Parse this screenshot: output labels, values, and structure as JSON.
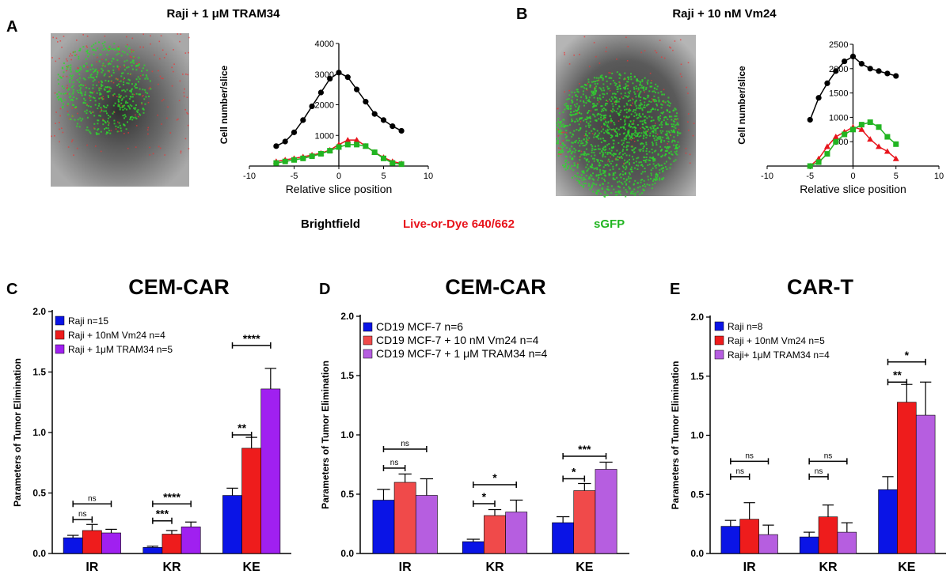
{
  "panels": {
    "A": {
      "letter": "A",
      "title": "Raji + 1 μM TRAM34"
    },
    "B": {
      "letter": "B",
      "title": "Raji + 10 nM Vm24"
    },
    "C": {
      "letter": "C",
      "title": "CEM-CAR"
    },
    "D": {
      "letter": "D",
      "title": "CEM-CAR"
    },
    "E": {
      "letter": "E",
      "title": "CAR-T"
    }
  },
  "channel_legend": [
    {
      "label": "Brightfield",
      "color": "#000000"
    },
    {
      "label": "Live-or-Dye 640/662",
      "color": "#e8141c"
    },
    {
      "label": "sGFP",
      "color": "#22b522"
    }
  ],
  "colors": {
    "black": "#000000",
    "red": "#e8141c",
    "green": "#22b522",
    "blue": "#0a14e6",
    "bar_red": "#ee1c1c",
    "bar_red_light": "#f04a4a",
    "purple": "#a020f0",
    "purple_light": "#b65ee0"
  },
  "chart_data": [
    {
      "id": "A",
      "type": "line",
      "xlabel": "Relative slice position",
      "ylabel": "Cell number/slice",
      "xlim": [
        -10,
        10
      ],
      "ylim": [
        0,
        4000
      ],
      "xticks": [
        "-10",
        "-5",
        "0",
        "5",
        "10"
      ],
      "yticks": [
        "1000",
        "2000",
        "3000",
        "4000"
      ],
      "series": [
        {
          "color": "black",
          "x": [
            -7,
            -6,
            -5,
            -4,
            -3,
            -2,
            -1,
            0,
            1,
            2,
            3,
            4,
            5,
            6,
            7
          ],
          "y": [
            650,
            800,
            1100,
            1500,
            1950,
            2400,
            2850,
            3050,
            2900,
            2500,
            2100,
            1700,
            1500,
            1300,
            1150
          ]
        },
        {
          "color": "red",
          "x": [
            -7,
            -6,
            -5,
            -4,
            -3,
            -2,
            -1,
            0,
            1,
            2,
            3,
            4,
            5,
            6,
            7
          ],
          "y": [
            150,
            200,
            250,
            300,
            360,
            420,
            520,
            700,
            850,
            850,
            650,
            450,
            280,
            150,
            80
          ]
        },
        {
          "color": "green",
          "x": [
            -7,
            -6,
            -5,
            -4,
            -3,
            -2,
            -1,
            0,
            1,
            2,
            3,
            4,
            5,
            6,
            7
          ],
          "y": [
            100,
            150,
            200,
            250,
            320,
            400,
            500,
            620,
            700,
            700,
            650,
            450,
            250,
            100,
            60
          ]
        }
      ]
    },
    {
      "id": "B",
      "type": "line",
      "xlabel": "Relative slice position",
      "ylabel": "Cell number/slice",
      "xlim": [
        -10,
        10
      ],
      "ylim": [
        0,
        2500
      ],
      "xticks": [
        "-10",
        "-5",
        "0",
        "5",
        "10"
      ],
      "yticks": [
        "500",
        "1000",
        "1500",
        "2000",
        "2500"
      ],
      "series": [
        {
          "color": "black",
          "x": [
            -5,
            -4,
            -3,
            -2,
            -1,
            0,
            1,
            2,
            3,
            4,
            5
          ],
          "y": [
            950,
            1400,
            1700,
            1950,
            2150,
            2250,
            2100,
            2000,
            1950,
            1900,
            1850
          ]
        },
        {
          "color": "red",
          "x": [
            -5,
            -4,
            -3,
            -2,
            -1,
            0,
            1,
            2,
            3,
            4,
            5
          ],
          "y": [
            0,
            150,
            400,
            600,
            700,
            800,
            750,
            550,
            400,
            300,
            150
          ]
        },
        {
          "color": "green",
          "x": [
            -5,
            -4,
            -3,
            -2,
            -1,
            0,
            1,
            2,
            3,
            4,
            5
          ],
          "y": [
            0,
            80,
            250,
            500,
            650,
            750,
            850,
            900,
            800,
            600,
            450
          ]
        }
      ]
    },
    {
      "id": "C",
      "type": "bar",
      "ylabel": "Parameters of Tumor Elimination",
      "categories": [
        "IR",
        "KR",
        "KE"
      ],
      "ylim": [
        0,
        2.0
      ],
      "yticks": [
        "0.0",
        "0.5",
        "1.0",
        "1.5",
        "2.0"
      ],
      "series": [
        {
          "name": "Raji  n=15",
          "color": "blue",
          "values": [
            0.13,
            0.05,
            0.48
          ],
          "errors": [
            0.02,
            0.01,
            0.06
          ]
        },
        {
          "name": "Raji + 10nM Vm24  n=4",
          "color": "bar_red",
          "values": [
            0.19,
            0.16,
            0.87
          ],
          "errors": [
            0.05,
            0.03,
            0.09
          ]
        },
        {
          "name": "Raji + 1μM TRAM34 n=5",
          "color": "purple",
          "values": [
            0.17,
            0.22,
            1.36
          ],
          "errors": [
            0.03,
            0.04,
            0.17
          ]
        }
      ],
      "significance": [
        {
          "category": "IR",
          "from": 0,
          "to": 1,
          "label": "ns",
          "y": 0.28
        },
        {
          "category": "IR",
          "from": 0,
          "to": 2,
          "label": "ns",
          "y": 0.41
        },
        {
          "category": "KR",
          "from": 0,
          "to": 1,
          "label": "***",
          "y": 0.27
        },
        {
          "category": "KR",
          "from": 0,
          "to": 2,
          "label": "****",
          "y": 0.41
        },
        {
          "category": "KE",
          "from": 0,
          "to": 1,
          "label": "**",
          "y": 0.98
        },
        {
          "category": "KE",
          "from": 0,
          "to": 2,
          "label": "****",
          "y": 1.72
        }
      ]
    },
    {
      "id": "D",
      "type": "bar",
      "ylabel": "Parameters of Tumor Elimination",
      "categories": [
        "IR",
        "KR",
        "KE"
      ],
      "ylim": [
        0,
        2.0
      ],
      "yticks": [
        "0.0",
        "0.5",
        "1.0",
        "1.5",
        "2.0"
      ],
      "series": [
        {
          "name": "CD19 MCF-7 n=6",
          "color": "blue",
          "values": [
            0.45,
            0.1,
            0.26
          ],
          "errors": [
            0.09,
            0.02,
            0.05
          ]
        },
        {
          "name": "CD19 MCF-7 + 10 nM Vm24  n=4",
          "color": "bar_red_light",
          "values": [
            0.6,
            0.32,
            0.53
          ],
          "errors": [
            0.07,
            0.05,
            0.06
          ]
        },
        {
          "name": "CD19 MCF-7 + 1 μM TRAM34  n=4",
          "color": "purple_light",
          "values": [
            0.49,
            0.35,
            0.71
          ],
          "errors": [
            0.14,
            0.1,
            0.06
          ]
        }
      ],
      "significance": [
        {
          "category": "IR",
          "from": 0,
          "to": 1,
          "label": "ns",
          "y": 0.72
        },
        {
          "category": "IR",
          "from": 0,
          "to": 2,
          "label": "ns",
          "y": 0.88
        },
        {
          "category": "KR",
          "from": 0,
          "to": 1,
          "label": "*",
          "y": 0.42
        },
        {
          "category": "KR",
          "from": 0,
          "to": 2,
          "label": "*",
          "y": 0.58
        },
        {
          "category": "KE",
          "from": 0,
          "to": 1,
          "label": "*",
          "y": 0.63
        },
        {
          "category": "KE",
          "from": 0,
          "to": 2,
          "label": "***",
          "y": 0.82
        }
      ]
    },
    {
      "id": "E",
      "type": "bar",
      "ylabel": "Parameters of Tumor Elimination",
      "categories": [
        "IR",
        "KR",
        "KE"
      ],
      "ylim": [
        0,
        2.0
      ],
      "yticks": [
        "0.0",
        "0.5",
        "1.0",
        "1.5",
        "2.0"
      ],
      "series": [
        {
          "name": "Raji  n=8",
          "color": "blue",
          "values": [
            0.23,
            0.14,
            0.54
          ],
          "errors": [
            0.05,
            0.04,
            0.11
          ]
        },
        {
          "name": "Raji + 10nM Vm24 n=5",
          "color": "bar_red",
          "values": [
            0.29,
            0.31,
            1.28
          ],
          "errors": [
            0.14,
            0.1,
            0.15
          ]
        },
        {
          "name": "Raji+ 1μM TRAM34  n=4",
          "color": "purple_light",
          "values": [
            0.16,
            0.18,
            1.17
          ],
          "errors": [
            0.08,
            0.08,
            0.28
          ]
        }
      ],
      "significance": [
        {
          "category": "IR",
          "from": 0,
          "to": 1,
          "label": "ns",
          "y": 0.65
        },
        {
          "category": "IR",
          "from": 0,
          "to": 2,
          "label": "ns",
          "y": 0.78
        },
        {
          "category": "KR",
          "from": 0,
          "to": 1,
          "label": "ns",
          "y": 0.65
        },
        {
          "category": "KR",
          "from": 0,
          "to": 2,
          "label": "ns",
          "y": 0.78
        },
        {
          "category": "KE",
          "from": 0,
          "to": 1,
          "label": "**",
          "y": 1.45
        },
        {
          "category": "KE",
          "from": 0,
          "to": 2,
          "label": "*",
          "y": 1.62
        }
      ]
    }
  ]
}
